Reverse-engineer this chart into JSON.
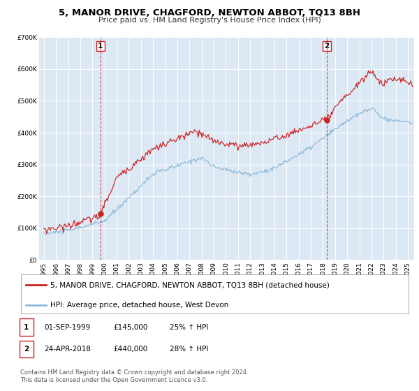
{
  "title": "5, MANOR DRIVE, CHAGFORD, NEWTON ABBOT, TQ13 8BH",
  "subtitle": "Price paid vs. HM Land Registry's House Price Index (HPI)",
  "ylim": [
    0,
    700000
  ],
  "yticks": [
    0,
    100000,
    200000,
    300000,
    400000,
    500000,
    600000,
    700000
  ],
  "ytick_labels": [
    "£0",
    "£100K",
    "£200K",
    "£300K",
    "£400K",
    "£500K",
    "£600K",
    "£700K"
  ],
  "xlim_start": 1994.6,
  "xlim_end": 2025.5,
  "xticks": [
    1995,
    1996,
    1997,
    1998,
    1999,
    2000,
    2001,
    2002,
    2003,
    2004,
    2005,
    2006,
    2007,
    2008,
    2009,
    2010,
    2011,
    2012,
    2013,
    2014,
    2015,
    2016,
    2017,
    2018,
    2019,
    2020,
    2021,
    2022,
    2023,
    2024,
    2025
  ],
  "background_color": "#ffffff",
  "plot_bg_color": "#dce9f5",
  "grid_color": "#ffffff",
  "red_line_color": "#cc2222",
  "blue_line_color": "#8ab8d8",
  "marker1_x": 1999.67,
  "marker1_y": 145000,
  "marker2_x": 2018.31,
  "marker2_y": 440000,
  "vline1_x": 1999.67,
  "vline2_x": 2018.31,
  "legend_label_red": "5, MANOR DRIVE, CHAGFORD, NEWTON ABBOT, TQ13 8BH (detached house)",
  "legend_label_blue": "HPI: Average price, detached house, West Devon",
  "annotation1_num": "1",
  "annotation2_num": "2",
  "table_row1": [
    "1",
    "01-SEP-1999",
    "£145,000",
    "25% ↑ HPI"
  ],
  "table_row2": [
    "2",
    "24-APR-2018",
    "£440,000",
    "28% ↑ HPI"
  ],
  "footer": "Contains HM Land Registry data © Crown copyright and database right 2024.\nThis data is licensed under the Open Government Licence v3.0.",
  "title_fontsize": 9.5,
  "subtitle_fontsize": 8.0,
  "tick_fontsize": 6.5,
  "legend_fontsize": 7.5,
  "table_fontsize": 7.5,
  "footer_fontsize": 6.0
}
